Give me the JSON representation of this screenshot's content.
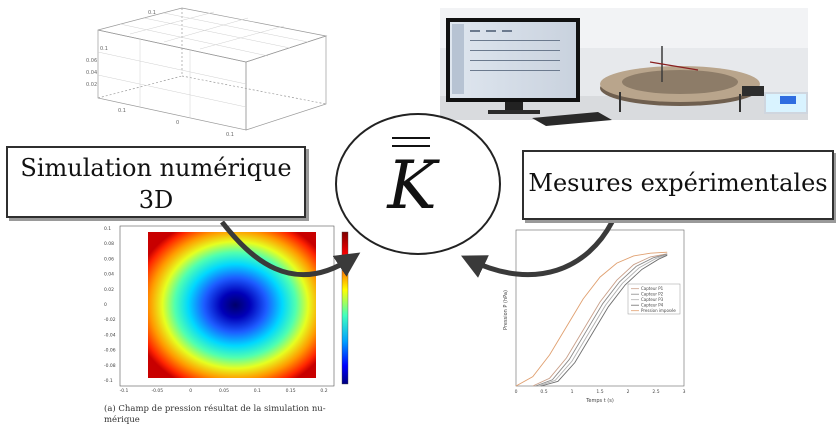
{
  "labels": {
    "simulation_line1": "Simulation numérique",
    "simulation_line2": "3D",
    "experimental": "Mesures expérimentales",
    "center_symbol": "K",
    "caption_line1": "(a) Champ de pression résultat de la simulation nu-",
    "caption_line2": "mérique"
  },
  "pressure_plot": {
    "x_ticks": [
      "-0.1",
      "-0.05",
      "0",
      "0.05",
      "0.1",
      "0.15",
      "0.2"
    ],
    "y_ticks": [
      "0.1",
      "0.08",
      "0.06",
      "0.04",
      "0.02",
      "0",
      "-0.02",
      "-0.04",
      "-0.06",
      "-0.08",
      "-0.1"
    ]
  },
  "chart_data": {
    "type": "line",
    "xlabel": "Temps t (s)",
    "ylabel": "Pression P (hPa)",
    "x_ticks": [
      "0",
      "0.5",
      "1",
      "1.5",
      "2",
      "2.5",
      "3"
    ],
    "legend": [
      "Capteur P1",
      "Capteur P2",
      "Capteur P3",
      "Capteur P4",
      "Pression imposée"
    ],
    "series": [
      {
        "name": "Capteur P1",
        "color": "#c9a08a",
        "x": [
          0.3,
          0.6,
          0.9,
          1.2,
          1.5,
          1.8,
          2.1,
          2.4,
          2.7
        ],
        "y": [
          0,
          0.25,
          0.9,
          1.8,
          2.7,
          3.4,
          3.9,
          4.15,
          4.25
        ]
      },
      {
        "name": "Capteur P2",
        "color": "#8a8a8a",
        "x": [
          0.35,
          0.65,
          0.95,
          1.25,
          1.55,
          1.85,
          2.15,
          2.45,
          2.7
        ],
        "y": [
          0,
          0.2,
          0.85,
          1.75,
          2.65,
          3.35,
          3.85,
          4.12,
          4.24
        ]
      },
      {
        "name": "Capteur P3",
        "color": "#b0b0b0",
        "x": [
          0.4,
          0.7,
          1.0,
          1.3,
          1.6,
          1.9,
          2.2,
          2.5,
          2.7
        ],
        "y": [
          0,
          0.18,
          0.8,
          1.7,
          2.6,
          3.3,
          3.8,
          4.1,
          4.22
        ]
      },
      {
        "name": "Capteur P4",
        "color": "#6e6e6e",
        "x": [
          0.45,
          0.75,
          1.05,
          1.35,
          1.65,
          1.95,
          2.25,
          2.55,
          2.7
        ],
        "y": [
          0,
          0.15,
          0.75,
          1.65,
          2.55,
          3.25,
          3.75,
          4.08,
          4.2
        ]
      },
      {
        "name": "Pression imposée",
        "color": "#e0a070",
        "x": [
          0.0,
          0.3,
          0.6,
          0.9,
          1.2,
          1.5,
          1.8,
          2.1,
          2.4,
          2.7
        ],
        "y": [
          0,
          0.3,
          1.0,
          1.9,
          2.8,
          3.5,
          3.95,
          4.18,
          4.27,
          4.3
        ]
      }
    ]
  },
  "colors": {
    "arrow": "#3a3a3a",
    "colorbar": [
      "#7f0000",
      "#ff0000",
      "#ffff00",
      "#00ffff",
      "#0000ff",
      "#00007f"
    ]
  }
}
